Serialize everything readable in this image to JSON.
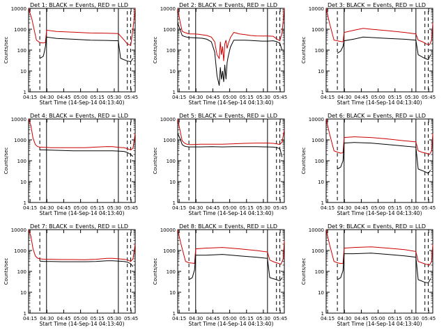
{
  "chart_data": [
    {
      "type": "line",
      "title": "Det 1: BLACK = Events, RED = LLD",
      "xlabel": "Start Time (14-Sep-14 04:13:40)",
      "ylabel": "Counts/sec",
      "xticks": [
        "04:15",
        "04:30",
        "04:45",
        "05:00",
        "05:15",
        "05:30",
        "05:45"
      ],
      "yticks": [
        "1",
        "10",
        "100",
        "1000",
        "10000"
      ],
      "ylim": [
        1,
        10000
      ],
      "yscale": "log",
      "xlim_minutes": [
        0,
        95
      ],
      "series": [
        {
          "name": "LLD",
          "color": "#cc0000",
          "x": [
            0,
            3,
            7,
            10,
            13,
            15,
            16,
            25,
            40,
            55,
            70,
            80,
            85,
            88,
            91,
            93,
            95
          ],
          "y": [
            10000,
            3000,
            300,
            230,
            220,
            230,
            900,
            780,
            720,
            660,
            640,
            620,
            310,
            200,
            170,
            1000,
            10000
          ]
        },
        {
          "name": "Events",
          "color": "#000000",
          "x": [
            10,
            13,
            13.5,
            15,
            16,
            25,
            40,
            55,
            70,
            80,
            82,
            88,
            91,
            93
          ],
          "y": [
            40,
            50,
            60,
            150,
            420,
            360,
            330,
            300,
            290,
            280,
            40,
            30,
            28,
            40
          ]
        }
      ]
    },
    {
      "type": "line",
      "title": "Det 2: BLACK = Events, RED = LLD",
      "xlabel": "Start Time (14-Sep-14 04:13:40)",
      "ylabel": "Counts/sec",
      "xticks": [
        "04:15",
        "04:30",
        "04:45",
        "05:00",
        "05:15",
        "05:30",
        "05:45"
      ],
      "yticks": [
        "1",
        "10",
        "100",
        "1000",
        "10000"
      ],
      "ylim": [
        1,
        10000
      ],
      "yscale": "log",
      "xlim_minutes": [
        0,
        95
      ],
      "series": [
        {
          "name": "LLD",
          "color": "#cc0000",
          "x": [
            0,
            2,
            4,
            6,
            8,
            10,
            14,
            18,
            22,
            26,
            30,
            33,
            35,
            37,
            38,
            39,
            40,
            41,
            42,
            43,
            44,
            45,
            47,
            50,
            55,
            60,
            65,
            70,
            75,
            80,
            85,
            88,
            91,
            93,
            95
          ],
          "y": [
            10000,
            2500,
            800,
            700,
            650,
            600,
            600,
            580,
            540,
            500,
            420,
            250,
            60,
            40,
            250,
            60,
            150,
            30,
            200,
            300,
            120,
            200,
            400,
            700,
            600,
            550,
            500,
            480,
            470,
            470,
            460,
            350,
            280,
            700,
            10000
          ]
        },
        {
          "name": "Events",
          "color": "#000000",
          "x": [
            0,
            2,
            4,
            6,
            8,
            10,
            14,
            18,
            22,
            26,
            30,
            33,
            35,
            37,
            38,
            39,
            40,
            41,
            42,
            43,
            44,
            45,
            47,
            50,
            55,
            60,
            65,
            70,
            75,
            80,
            85,
            88,
            91,
            93
          ],
          "y": [
            2000,
            1000,
            500,
            450,
            420,
            400,
            390,
            380,
            370,
            330,
            250,
            80,
            6,
            2,
            15,
            4,
            10,
            3,
            20,
            4,
            25,
            50,
            140,
            300,
            300,
            300,
            290,
            280,
            270,
            270,
            280,
            260,
            210,
            100
          ]
        }
      ]
    },
    {
      "type": "line",
      "title": "Det 3: BLACK = Events, RED = LLD",
      "xlabel": "Start Time (14-Sep-14 04:13:40)",
      "ylabel": "Counts/sec",
      "xticks": [
        "04:15",
        "04:30",
        "04:45",
        "05:00",
        "05:15",
        "05:30",
        "05:45"
      ],
      "yticks": [
        "1",
        "10",
        "100",
        "1000",
        "10000"
      ],
      "ylim": [
        1,
        10000
      ],
      "yscale": "log",
      "xlim_minutes": [
        0,
        95
      ],
      "series": [
        {
          "name": "LLD",
          "color": "#cc0000",
          "x": [
            0,
            3,
            7,
            10,
            13,
            15,
            16,
            25,
            33,
            40,
            55,
            70,
            80,
            82,
            86,
            89,
            92,
            94,
            95
          ],
          "y": [
            10000,
            2000,
            300,
            280,
            260,
            250,
            700,
            900,
            1100,
            1000,
            850,
            700,
            600,
            300,
            250,
            200,
            180,
            300,
            2000
          ]
        },
        {
          "name": "Events",
          "color": "#000000",
          "x": [
            10,
            13,
            15,
            16,
            25,
            33,
            40,
            55,
            70,
            80,
            82,
            88,
            91,
            93
          ],
          "y": [
            70,
            90,
            150,
            280,
            340,
            420,
            400,
            360,
            330,
            300,
            60,
            40,
            35,
            60
          ]
        }
      ]
    },
    {
      "type": "line",
      "title": "Det 4: BLACK = Events, RED = LLD",
      "xlabel": "Start Time (14-Sep-14 04:13:40)",
      "ylabel": "Counts/sec",
      "xticks": [
        "04:15",
        "04:30",
        "04:45",
        "05:00",
        "05:15",
        "05:30",
        "05:45"
      ],
      "yticks": [
        "1",
        "10",
        "100",
        "1000",
        "10000"
      ],
      "ylim": [
        1,
        10000
      ],
      "yscale": "log",
      "xlim_minutes": [
        0,
        95
      ],
      "series": [
        {
          "name": "LLD",
          "color": "#cc0000",
          "x": [
            0,
            2,
            4,
            6,
            8,
            10,
            14,
            20,
            30,
            40,
            50,
            60,
            70,
            75,
            80,
            85,
            88,
            91,
            93,
            95
          ],
          "y": [
            10000,
            5000,
            1200,
            600,
            480,
            450,
            440,
            420,
            420,
            420,
            420,
            450,
            480,
            470,
            440,
            420,
            380,
            330,
            400,
            2000
          ]
        },
        {
          "name": "Events",
          "color": "#000000",
          "x": [
            10,
            14,
            20,
            30,
            40,
            50,
            60,
            70,
            75,
            80,
            85,
            88,
            91,
            93
          ],
          "y": [
            330,
            330,
            320,
            310,
            300,
            300,
            300,
            300,
            300,
            290,
            280,
            250,
            200,
            160
          ]
        }
      ]
    },
    {
      "type": "line",
      "title": "Det 5: BLACK = Events, RED = LLD",
      "xlabel": "Start Time (14-Sep-14 04:13:40)",
      "ylabel": "Counts/sec",
      "xticks": [
        "04:15",
        "04:30",
        "04:45",
        "05:00",
        "05:15",
        "05:30",
        "05:45"
      ],
      "yticks": [
        "1",
        "10",
        "100",
        "1000",
        "10000"
      ],
      "ylim": [
        1,
        10000
      ],
      "yscale": "log",
      "xlim_minutes": [
        0,
        95
      ],
      "series": [
        {
          "name": "LLD",
          "color": "#cc0000",
          "x": [
            0,
            2,
            4,
            6,
            8,
            10,
            14,
            20,
            30,
            40,
            50,
            60,
            70,
            80,
            85,
            88,
            91,
            93,
            95
          ],
          "y": [
            10000,
            3000,
            900,
            700,
            620,
            600,
            600,
            620,
            620,
            620,
            650,
            680,
            700,
            700,
            680,
            650,
            600,
            800,
            3000
          ]
        },
        {
          "name": "Events",
          "color": "#000000",
          "x": [
            0,
            2,
            4,
            6,
            8,
            10,
            14,
            20,
            30,
            40,
            50,
            60,
            70,
            80,
            85,
            88,
            91,
            93
          ],
          "y": [
            2000,
            1200,
            600,
            500,
            470,
            460,
            460,
            460,
            470,
            460,
            470,
            470,
            470,
            460,
            450,
            430,
            380,
            150
          ]
        }
      ]
    },
    {
      "type": "line",
      "title": "Det 6: BLACK = Events, RED = LLD",
      "xlabel": "Start Time (14-Sep-14 04:13:40)",
      "ylabel": "Counts/sec",
      "xticks": [
        "04:15",
        "04:30",
        "04:45",
        "05:00",
        "05:15",
        "05:30",
        "05:45"
      ],
      "yticks": [
        "1",
        "10",
        "100",
        "1000",
        "10000"
      ],
      "ylim": [
        1,
        10000
      ],
      "yscale": "log",
      "xlim_minutes": [
        0,
        95
      ],
      "series": [
        {
          "name": "LLD",
          "color": "#cc0000",
          "x": [
            0,
            3,
            7,
            10,
            13,
            15,
            16,
            25,
            40,
            55,
            70,
            80,
            82,
            86,
            89,
            92,
            94,
            95
          ],
          "y": [
            10000,
            2000,
            300,
            260,
            230,
            240,
            1300,
            1400,
            1300,
            1100,
            900,
            800,
            300,
            250,
            230,
            200,
            300,
            2000
          ]
        },
        {
          "name": "Events",
          "color": "#000000",
          "x": [
            10,
            13,
            15,
            16,
            25,
            40,
            55,
            70,
            80,
            82,
            88,
            91,
            93
          ],
          "y": [
            40,
            50,
            100,
            700,
            750,
            700,
            600,
            500,
            450,
            40,
            30,
            25,
            35
          ]
        }
      ]
    },
    {
      "type": "line",
      "title": "Det 7: BLACK = Events, RED = LLD",
      "xlabel": "Start Time (14-Sep-14 04:13:40)",
      "ylabel": "Counts/sec",
      "xticks": [
        "04:15",
        "04:30",
        "04:45",
        "05:00",
        "05:15",
        "05:30",
        "05:45"
      ],
      "yticks": [
        "1",
        "10",
        "100",
        "1000",
        "10000"
      ],
      "ylim": [
        1,
        10000
      ],
      "yscale": "log",
      "xlim_minutes": [
        0,
        95
      ],
      "series": [
        {
          "name": "LLD",
          "color": "#cc0000",
          "x": [
            0,
            2,
            4,
            6,
            8,
            10,
            14,
            20,
            30,
            40,
            50,
            60,
            70,
            75,
            80,
            85,
            88,
            91,
            93,
            95
          ],
          "y": [
            10000,
            5000,
            1200,
            550,
            430,
            400,
            380,
            380,
            370,
            370,
            360,
            380,
            420,
            420,
            400,
            380,
            360,
            300,
            400,
            2000
          ]
        },
        {
          "name": "Events",
          "color": "#000000",
          "x": [
            10,
            14,
            20,
            30,
            40,
            50,
            60,
            70,
            75,
            80,
            85,
            88,
            91,
            93
          ],
          "y": [
            310,
            300,
            300,
            290,
            290,
            290,
            300,
            320,
            320,
            310,
            300,
            280,
            230,
            170
          ]
        }
      ]
    },
    {
      "type": "line",
      "title": "Det 8: BLACK = Events, RED = LLD",
      "xlabel": "Start Time (14-Sep-14 04:13:40)",
      "ylabel": "Counts/sec",
      "xticks": [
        "04:15",
        "04:30",
        "04:45",
        "05:00",
        "05:15",
        "05:30",
        "05:45"
      ],
      "yticks": [
        "1",
        "10",
        "100",
        "1000",
        "10000"
      ],
      "ylim": [
        1,
        10000
      ],
      "yscale": "log",
      "xlim_minutes": [
        0,
        95
      ],
      "series": [
        {
          "name": "LLD",
          "color": "#cc0000",
          "x": [
            0,
            3,
            7,
            10,
            13,
            15,
            16,
            25,
            40,
            55,
            70,
            80,
            82,
            86,
            89,
            92,
            94,
            95
          ],
          "y": [
            10000,
            2000,
            300,
            260,
            250,
            240,
            1200,
            1300,
            1400,
            1200,
            1000,
            850,
            350,
            280,
            250,
            220,
            400,
            3000
          ]
        },
        {
          "name": "Events",
          "color": "#000000",
          "x": [
            10,
            13,
            15,
            16,
            25,
            40,
            55,
            70,
            80,
            82,
            88,
            91,
            93
          ],
          "y": [
            40,
            50,
            120,
            600,
            600,
            650,
            550,
            480,
            420,
            50,
            40,
            35,
            50
          ]
        }
      ]
    },
    {
      "type": "line",
      "title": "Det 9: BLACK = Events, RED = LLD",
      "xlabel": "Start Time (14-Sep-14 04:13:40)",
      "ylabel": "Counts/sec",
      "xticks": [
        "04:15",
        "04:30",
        "04:45",
        "05:00",
        "05:15",
        "05:30",
        "05:45"
      ],
      "yticks": [
        "1",
        "10",
        "100",
        "1000",
        "10000"
      ],
      "ylim": [
        1,
        10000
      ],
      "yscale": "log",
      "xlim_minutes": [
        0,
        95
      ],
      "series": [
        {
          "name": "LLD",
          "color": "#cc0000",
          "x": [
            0,
            3,
            7,
            10,
            13,
            15,
            16,
            25,
            40,
            55,
            70,
            80,
            82,
            86,
            89,
            92,
            94,
            95
          ],
          "y": [
            10000,
            2000,
            300,
            260,
            240,
            240,
            1300,
            1400,
            1500,
            1300,
            1100,
            900,
            300,
            250,
            220,
            200,
            300,
            2000
          ]
        },
        {
          "name": "Events",
          "color": "#000000",
          "x": [
            10,
            13,
            15,
            16,
            25,
            40,
            55,
            70,
            80,
            82,
            88,
            91,
            93
          ],
          "y": [
            40,
            50,
            110,
            700,
            700,
            750,
            650,
            550,
            480,
            40,
            30,
            28,
            45
          ]
        }
      ]
    }
  ]
}
